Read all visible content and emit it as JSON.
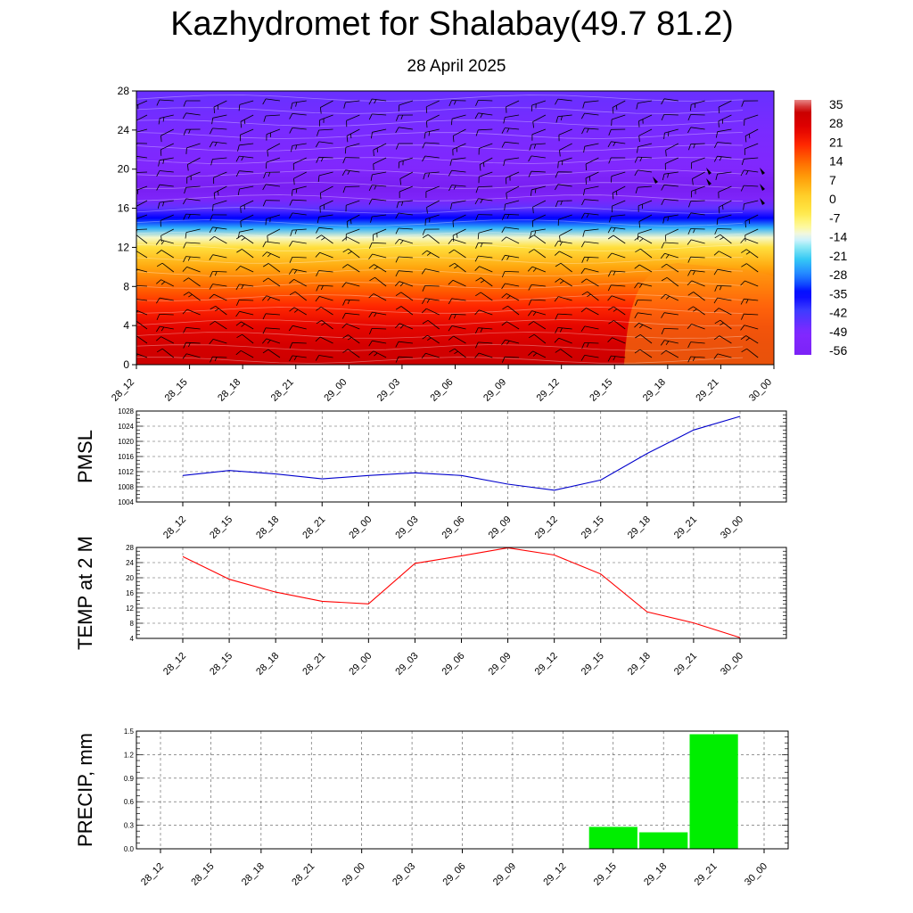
{
  "header": {
    "title": "Kazhydromet for Shalabay(49.7 81.2)",
    "date": "28 April 2025"
  },
  "chart_data": [
    {
      "type": "heatmap",
      "x_labels": [
        "28_12",
        "28_15",
        "28_18",
        "28_21",
        "29_00",
        "29_03",
        "29_06",
        "29_09",
        "29_12",
        "29_15",
        "29_18",
        "29_21",
        "30_00"
      ],
      "y_ticks": [
        0,
        4,
        8,
        12,
        16,
        20,
        24,
        28
      ],
      "ylim": [
        0,
        28
      ],
      "colorbar_labels": [
        "35",
        "28",
        "21",
        "14",
        "7",
        "0",
        "-7",
        "-14",
        "-21",
        "-28",
        "-35",
        "-42",
        "-49",
        "-56"
      ],
      "colorbar_values": [
        35,
        28,
        21,
        14,
        7,
        0,
        -7,
        -14,
        -21,
        -28,
        -35,
        -42,
        -49,
        -56
      ],
      "field_by_height": [
        {
          "y": 0,
          "value": 30
        },
        {
          "y": 2,
          "value": 28
        },
        {
          "y": 4,
          "value": 24
        },
        {
          "y": 6,
          "value": 19
        },
        {
          "y": 8,
          "value": 13
        },
        {
          "y": 10,
          "value": 6
        },
        {
          "y": 12,
          "value": -3
        },
        {
          "y": 13,
          "value": -12
        },
        {
          "y": 14,
          "value": -24
        },
        {
          "y": 15,
          "value": -34
        },
        {
          "y": 16,
          "value": -44
        },
        {
          "y": 17,
          "value": -54
        },
        {
          "y": 18,
          "value": -60
        },
        {
          "y": 19,
          "value": -56
        },
        {
          "y": 20,
          "value": -50
        },
        {
          "y": 24,
          "value": -47
        },
        {
          "y": 28,
          "value": -45
        }
      ],
      "wind_barbs": true,
      "colors": {
        "hot": "#cc0000",
        "cold": "#7b2bf0"
      }
    },
    {
      "type": "line",
      "ylabel": "PMSL",
      "x_labels": [
        "28_12",
        "28_15",
        "28_18",
        "28_21",
        "29_00",
        "29_03",
        "29_06",
        "29_09",
        "29_12",
        "29_15",
        "29_18",
        "29_21",
        "30_00"
      ],
      "y_ticks": [
        1004,
        1008,
        1012,
        1016,
        1020,
        1024,
        1028
      ],
      "ylim": [
        1004,
        1028
      ],
      "values": [
        1011.0,
        1012.3,
        1011.4,
        1010.1,
        1011.0,
        1011.7,
        1011.0,
        1008.7,
        1007.1,
        1009.8,
        1016.8,
        1023.0,
        1026.6
      ],
      "color": "#0000cc",
      "grid": true
    },
    {
      "type": "line",
      "ylabel": "TEMP at 2 M",
      "x_labels": [
        "28_12",
        "28_15",
        "28_18",
        "28_21",
        "29_00",
        "29_03",
        "29_06",
        "29_09",
        "29_12",
        "29_15",
        "29_18",
        "29_21",
        "30_00"
      ],
      "y_ticks": [
        4,
        8,
        12,
        16,
        20,
        24,
        28
      ],
      "ylim": [
        4,
        28
      ],
      "values": [
        25.6,
        19.6,
        16.2,
        13.8,
        13.1,
        23.8,
        25.8,
        27.9,
        26.0,
        21.0,
        11.0,
        8.1,
        4.2
      ],
      "color": "#ff0000",
      "grid": true
    },
    {
      "type": "bar",
      "ylabel": "PRECIP, mm",
      "x_labels": [
        "28_12",
        "28_15",
        "28_18",
        "28_21",
        "29_00",
        "29_03",
        "29_06",
        "29_09",
        "29_12",
        "29_15",
        "29_18",
        "29_21",
        "30_00"
      ],
      "y_ticks": [
        "0.0",
        "0.3",
        "0.6",
        "0.9",
        "1.2",
        "1.5"
      ],
      "ylim": [
        0,
        1.5
      ],
      "values": [
        0,
        0,
        0,
        0,
        0,
        0,
        0,
        0,
        0,
        0.28,
        0.21,
        1.46,
        0
      ],
      "color": "#00ee00",
      "grid": true
    }
  ]
}
